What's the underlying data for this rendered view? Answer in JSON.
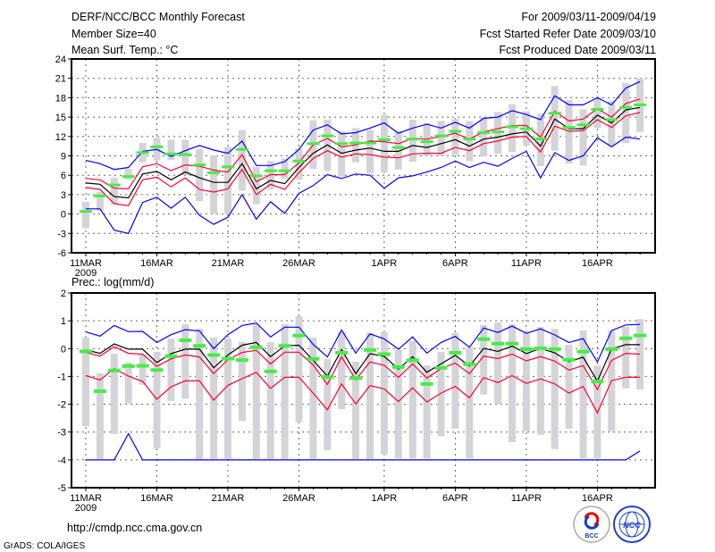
{
  "header": {
    "title": "DERF/NCC/BCC Monthly Forecast",
    "member_size": "Member Size=40",
    "variable": "Mean Surf. Temp.: °C",
    "period": "For 2009/03/11-2009/04/19",
    "started": "Fcst Started Refer Date 2009/03/10",
    "produced": "Fcst Produced Date 2009/03/11"
  },
  "footer": {
    "url": "http://cmdp.ncc.cma.gov.cn",
    "credit": "GrADS: COLA/IGES",
    "logo_bcc": "BCC",
    "logo_ncc": "NCC"
  },
  "colors": {
    "black": "#000000",
    "red": "#ff0033",
    "blue": "#0000ff",
    "green": "#44ee44",
    "bar": "#d4d4d8"
  },
  "chart_data": [
    {
      "type": "line",
      "title": "Mean Surf. Temp.: °C",
      "x_start": "2009-03-11",
      "days": 40,
      "xticks": [
        "11MAR",
        "16MAR",
        "21MAR",
        "26MAR",
        "1APR",
        "6APR",
        "11APR",
        "16APR"
      ],
      "xtick_days": [
        0,
        5,
        10,
        15,
        21,
        26,
        31,
        36
      ],
      "year_label": "2009",
      "ylim": [
        -6,
        24
      ],
      "ystep": 3,
      "grid": true,
      "series": [
        {
          "name": "ensemble mean",
          "color": "black",
          "values": [
            4.8,
            4.6,
            2.7,
            2.5,
            6.2,
            6.6,
            5.3,
            6.5,
            5.6,
            4.9,
            4.9,
            7.8,
            3.9,
            5.2,
            4.7,
            7.2,
            9.4,
            10.7,
            9.4,
            9.9,
            10.2,
            9.7,
            9.7,
            10.6,
            10.3,
            10.9,
            11.5,
            10.5,
            11.6,
            11.9,
            12.4,
            12.7,
            10.5,
            14.7,
            13.2,
            13.2,
            15.3,
            14.1,
            16.1,
            16.5
          ]
        },
        {
          "name": "upper spread",
          "color": "red",
          "values": [
            5.5,
            5.3,
            4.0,
            3.9,
            7.3,
            7.8,
            6.7,
            7.6,
            7.4,
            6.8,
            6.5,
            9.2,
            5.0,
            6.1,
            6.1,
            7.9,
            10.7,
            11.7,
            10.4,
            10.7,
            11.3,
            11.2,
            10.9,
            11.7,
            11.6,
            12.0,
            12.5,
            11.6,
            12.7,
            13.2,
            13.7,
            13.7,
            11.9,
            15.9,
            14.4,
            14.7,
            16.3,
            15.0,
            17.1,
            17.8
          ]
        },
        {
          "name": "lower spread",
          "color": "red",
          "values": [
            4.1,
            3.8,
            1.6,
            1.3,
            5.3,
            5.7,
            4.2,
            5.6,
            3.8,
            3.4,
            3.9,
            6.9,
            3.0,
            4.6,
            3.8,
            6.4,
            8.6,
            9.8,
            8.8,
            9.3,
            9.2,
            8.8,
            8.7,
            9.3,
            9.4,
            9.4,
            10.3,
            9.8,
            10.9,
            11.3,
            11.9,
            12.0,
            9.6,
            13.6,
            12.8,
            12.9,
            14.6,
            13.4,
            15.2,
            15.7
          ]
        },
        {
          "name": "maximum",
          "color": "blue",
          "values": [
            8.3,
            7.8,
            6.9,
            7.2,
            9.7,
            10.0,
            8.9,
            9.8,
            10.6,
            9.9,
            9.4,
            11.3,
            7.5,
            7.5,
            8.1,
            10.0,
            13.0,
            13.8,
            12.4,
            12.6,
            13.3,
            14.1,
            12.5,
            13.3,
            13.9,
            13.3,
            14.2,
            13.3,
            14.8,
            15.0,
            16.0,
            15.4,
            14.6,
            18.3,
            16.9,
            16.9,
            18.0,
            16.9,
            19.5,
            20.5
          ]
        },
        {
          "name": "minimum",
          "color": "blue",
          "values": [
            0.8,
            0.8,
            -2.5,
            -3.0,
            1.8,
            2.6,
            0.9,
            2.6,
            -0.2,
            -1.6,
            -0.5,
            3.0,
            -0.8,
            1.9,
            0.1,
            3.2,
            4.4,
            6.1,
            5.5,
            6.2,
            6.0,
            4.0,
            5.6,
            5.9,
            6.5,
            7.2,
            8.2,
            7.2,
            8.0,
            7.4,
            8.6,
            9.7,
            5.6,
            9.5,
            8.3,
            9.0,
            11.8,
            10.4,
            11.9,
            11.6
          ]
        }
      ],
      "markers": {
        "name": "green marker",
        "values": [
          0.4,
          2.8,
          4.5,
          5.8,
          9.5,
          10.4,
          9.3,
          9.2,
          7.6,
          6.4,
          7.3,
          10.0,
          5.9,
          6.7,
          6.7,
          8.2,
          10.9,
          12.1,
          10.9,
          11.0,
          11.0,
          11.5,
          10.3,
          11.6,
          11.2,
          12.1,
          12.8,
          11.6,
          12.6,
          12.7,
          13.5,
          13.2,
          11.6,
          15.6,
          13.4,
          13.8,
          16.2,
          14.6,
          16.5,
          16.9
        ]
      },
      "bars": {
        "low": [
          -2.2,
          0.5,
          1.5,
          5.3,
          8.0,
          8.3,
          8.4,
          6.0,
          2.0,
          0.0,
          0.0,
          3.6,
          1.5,
          3.8,
          5.5,
          5.3,
          7.0,
          6.7,
          5.8,
          8.0,
          6.3,
          6.5,
          6.9,
          8.1,
          9.0,
          9.0,
          9.2,
          8.2,
          8.9,
          9.3,
          9.6,
          10.6,
          7.4,
          9.8,
          7.8,
          7.5,
          13.3,
          10.6,
          11.0,
          12.7
        ],
        "high": [
          1.9,
          3.4,
          5.6,
          7.0,
          11.0,
          11.8,
          11.5,
          11.5,
          10.1,
          9.1,
          10.4,
          13.0,
          7.3,
          8.2,
          8.6,
          10.2,
          14.5,
          14.6,
          12.8,
          13.3,
          13.0,
          15.3,
          12.9,
          14.6,
          14.1,
          14.4,
          14.7,
          14.4,
          15.0,
          15.8,
          17.0,
          15.9,
          15.5,
          19.8,
          17.6,
          16.2,
          18.0,
          17.5,
          20.3,
          21.0
        ]
      }
    },
    {
      "type": "line",
      "title": "Prec.: log(mm/d)",
      "x_start": "2009-03-11",
      "days": 40,
      "xticks": [
        "11MAR",
        "16MAR",
        "21MAR",
        "26MAR",
        "1APR",
        "6APR",
        "11APR",
        "16APR"
      ],
      "xtick_days": [
        0,
        5,
        10,
        15,
        21,
        26,
        31,
        36
      ],
      "year_label": "2009",
      "ylim": [
        -5,
        2
      ],
      "ystep": 1,
      "grid": true,
      "series": [
        {
          "name": "ensemble mean",
          "color": "black",
          "values": [
            -0.05,
            -0.17,
            0.17,
            -0.02,
            -0.02,
            -0.5,
            -0.18,
            -0.02,
            -0.02,
            -0.69,
            -0.23,
            0.12,
            0.22,
            -0.29,
            0.1,
            0.12,
            -0.42,
            -0.99,
            -0.04,
            -0.9,
            -0.18,
            -0.28,
            -0.74,
            -0.29,
            -0.85,
            -0.55,
            -0.24,
            -0.63,
            0.01,
            -0.1,
            0.09,
            -0.18,
            0.01,
            -0.15,
            -0.47,
            -0.31,
            -1.17,
            -0.01,
            0.14,
            0.14
          ]
        },
        {
          "name": "upper spread",
          "color": "red",
          "values": [
            -0.14,
            -0.27,
            0.07,
            -0.17,
            -0.2,
            -0.64,
            -0.37,
            -0.23,
            -0.3,
            -0.9,
            -0.4,
            -0.14,
            -0.06,
            -0.55,
            -0.13,
            -0.13,
            -0.59,
            -1.29,
            -0.3,
            -1.12,
            -0.48,
            -0.6,
            -1.03,
            -0.55,
            -1.06,
            -0.72,
            -0.52,
            -0.9,
            -0.27,
            -0.36,
            -0.2,
            -0.44,
            -0.29,
            -0.45,
            -0.77,
            -0.61,
            -1.47,
            -0.42,
            -0.17,
            -0.2
          ]
        },
        {
          "name": "lower spread",
          "color": "red",
          "values": [
            -0.97,
            -1.13,
            -0.72,
            -0.99,
            -1.18,
            -1.82,
            -1.37,
            -1.16,
            -1.16,
            -1.85,
            -1.32,
            -1.08,
            -0.85,
            -1.43,
            -1.03,
            -1.03,
            -1.6,
            -2.2,
            -1.27,
            -1.99,
            -1.33,
            -1.45,
            -1.9,
            -1.41,
            -1.92,
            -1.6,
            -1.36,
            -1.77,
            -1.04,
            -1.22,
            -0.97,
            -1.25,
            -1.09,
            -1.27,
            -1.6,
            -1.36,
            -2.31,
            -1.15,
            -1.03,
            -1.03
          ]
        },
        {
          "name": "maximum",
          "color": "blue",
          "values": [
            0.6,
            0.45,
            0.83,
            0.61,
            0.62,
            0.22,
            0.5,
            0.68,
            0.64,
            0.0,
            0.5,
            0.83,
            0.92,
            0.42,
            0.77,
            0.77,
            0.15,
            -0.3,
            0.67,
            -0.16,
            0.53,
            0.35,
            -0.02,
            0.42,
            -0.16,
            0.22,
            0.44,
            0.05,
            0.74,
            0.58,
            0.81,
            0.55,
            0.71,
            0.49,
            0.22,
            0.36,
            -0.48,
            0.65,
            0.85,
            0.87
          ]
        },
        {
          "name": "minimum",
          "color": "blue",
          "values": [
            -4,
            -4,
            -4,
            -3.06,
            -4,
            -4,
            -4,
            -4,
            -4,
            -4,
            -4,
            -4,
            -4,
            -4,
            -4,
            -4,
            -4,
            -4,
            -4,
            -4,
            -4,
            -4,
            -4,
            -4,
            -4,
            -4,
            -4,
            -4,
            -4,
            -4,
            -4,
            -4,
            -4,
            -4,
            -4,
            -4,
            -4,
            -4,
            -4,
            -3.68
          ]
        }
      ],
      "markers": {
        "name": "green marker",
        "values": [
          -0.1,
          -1.53,
          -0.79,
          -0.63,
          -0.62,
          -0.77,
          -0.27,
          0.3,
          0.1,
          -0.23,
          -0.36,
          -0.41,
          0.05,
          -0.82,
          0.1,
          0.47,
          -0.37,
          -1.02,
          -0.15,
          -1.06,
          -0.05,
          -0.2,
          -0.66,
          -0.42,
          -1.27,
          -0.69,
          -0.15,
          -0.56,
          0.34,
          0.18,
          0.18,
          -0.02,
          0.01,
          -0.02,
          -0.4,
          -0.11,
          -1.18,
          -0.02,
          0.37,
          0.47
        ]
      },
      "bars": {
        "low": [
          -2.79,
          -3.97,
          -3.07,
          -1.97,
          -1.3,
          -3.6,
          -1.88,
          -1.8,
          -3.97,
          -3.97,
          -3.97,
          -2.6,
          -3.97,
          -3.97,
          -3.97,
          -2.65,
          -3.97,
          -3.65,
          -2.18,
          -3.97,
          -3.97,
          -3.8,
          -3.95,
          -3.95,
          -3.95,
          -3.15,
          -2.88,
          -3.95,
          -1.65,
          -2.0,
          -3.36,
          -2.97,
          -3.1,
          -3.61,
          -2.88,
          -3.95,
          -3.95,
          -2.97,
          -1.43,
          -1.47
        ],
        "high": [
          0.4,
          -0.88,
          -0.18,
          -0.5,
          -0.2,
          -0.12,
          0.36,
          0.88,
          0.72,
          0.4,
          0.36,
          0.24,
          0.88,
          0.23,
          0.88,
          1.17,
          0.4,
          -0.38,
          0.6,
          -0.47,
          0.57,
          0.6,
          -0.04,
          0.28,
          -0.6,
          -0.12,
          0.57,
          0.06,
          0.85,
          0.94,
          0.87,
          0.55,
          0.78,
          0.71,
          0.14,
          0.65,
          -0.61,
          0.65,
          0.78,
          1.06
        ]
      }
    }
  ]
}
